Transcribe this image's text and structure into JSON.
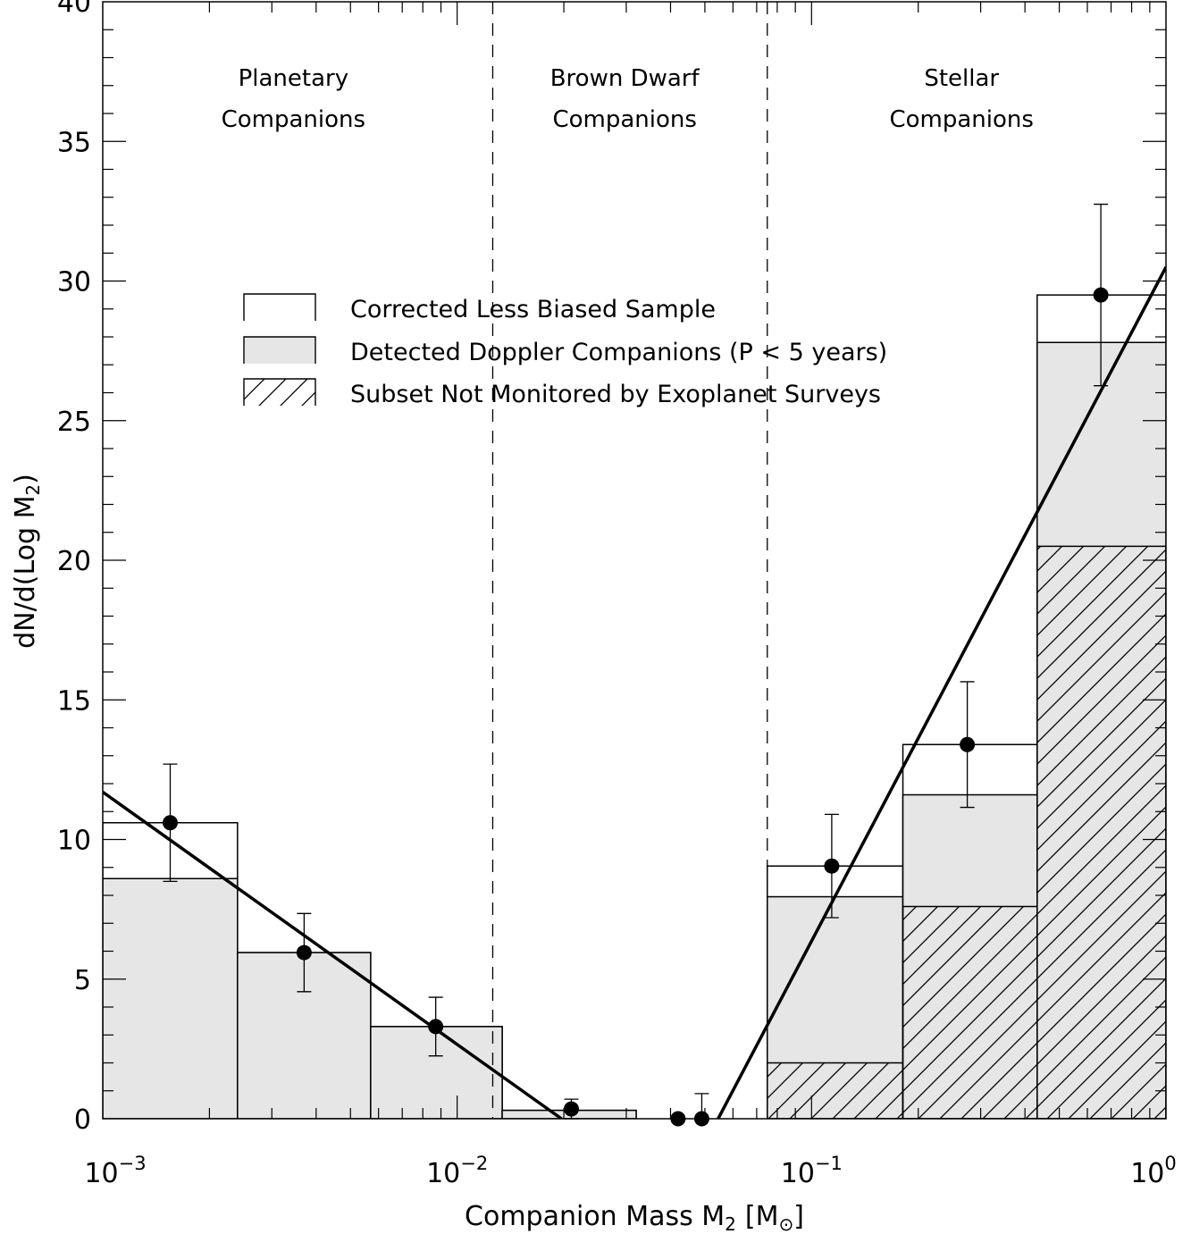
{
  "chart_data": {
    "type": "bar",
    "xscale": "log",
    "xlim": [
      0.001,
      1
    ],
    "ylim": [
      0,
      40
    ],
    "xlabel": {
      "base": "Companion Mass M",
      "sub": "2",
      "unit_open": "[M",
      "unit_sym": "⊙",
      "unit_close": "]"
    },
    "ylabel": {
      "pre": "dN/d(Log M",
      "sub": "2",
      "post": ")"
    },
    "xticks": [
      {
        "value": 0.001,
        "base": "10",
        "exp": "−3"
      },
      {
        "value": 0.01,
        "base": "10",
        "exp": "−2"
      },
      {
        "value": 0.1,
        "base": "10",
        "exp": "−1"
      },
      {
        "value": 1,
        "base": "10",
        "exp": "0"
      }
    ],
    "yticks": [
      "0",
      "5",
      "10",
      "15",
      "20",
      "25",
      "30",
      "35",
      "40"
    ],
    "regions": [
      {
        "line1": "Planetary",
        "line2": "Companions",
        "center": 0.00345
      },
      {
        "line1": "Brown Dwarf",
        "line2": "Companions",
        "center": 0.0297
      },
      {
        "line1": "Stellar",
        "line2": "Companions",
        "center": 0.265
      }
    ],
    "region_boundaries": [
      0.0126,
      0.075
    ],
    "legend": [
      {
        "key": "corrected",
        "label": "Corrected Less Biased Sample"
      },
      {
        "key": "detected",
        "label": "Detected Doppler Companions (P < 5 years)"
      },
      {
        "key": "subset",
        "label": "Subset Not Monitored by Exoplanet Surveys"
      }
    ],
    "bins": [
      {
        "x0": 0.001,
        "x1": 0.0024,
        "corrected": 10.6,
        "detected": 8.6,
        "subset": 0
      },
      {
        "x0": 0.0024,
        "x1": 0.0057,
        "corrected": 5.95,
        "detected": 5.95,
        "subset": 0
      },
      {
        "x0": 0.0057,
        "x1": 0.0134,
        "corrected": 3.3,
        "detected": 3.3,
        "subset": 0
      },
      {
        "x0": 0.0134,
        "x1": 0.032,
        "corrected": 0.3,
        "detected": 0.3,
        "subset": 0
      },
      {
        "x0": 0.075,
        "x1": 0.181,
        "corrected": 9.05,
        "detected": 7.95,
        "subset": 2.0
      },
      {
        "x0": 0.181,
        "x1": 0.433,
        "corrected": 13.4,
        "detected": 11.6,
        "subset": 7.6
      },
      {
        "x0": 0.433,
        "x1": 1.0,
        "corrected": 29.5,
        "detected": 27.8,
        "subset": 20.5
      }
    ],
    "points": [
      {
        "x": 0.00155,
        "y": 10.6,
        "yerr_lo": 2.1,
        "yerr_hi": 2.1
      },
      {
        "x": 0.0037,
        "y": 5.95,
        "yerr_lo": 1.4,
        "yerr_hi": 1.4
      },
      {
        "x": 0.0087,
        "y": 3.3,
        "yerr_lo": 1.05,
        "yerr_hi": 1.05
      },
      {
        "x": 0.021,
        "y": 0.35,
        "yerr_lo": 0.35,
        "yerr_hi": 0.35
      },
      {
        "x": 0.042,
        "y": 0.0,
        "yerr_lo": 0,
        "yerr_hi": 0
      },
      {
        "x": 0.049,
        "y": 0.0,
        "yerr_lo": 0,
        "yerr_hi": 0.9
      },
      {
        "x": 0.114,
        "y": 9.05,
        "yerr_lo": 1.85,
        "yerr_hi": 1.85
      },
      {
        "x": 0.275,
        "y": 13.4,
        "yerr_lo": 2.25,
        "yerr_hi": 2.25
      },
      {
        "x": 0.655,
        "y": 29.5,
        "yerr_lo": 3.25,
        "yerr_hi": 3.25
      }
    ],
    "fits": [
      {
        "name": "planetary-fit",
        "x0": 0.001,
        "y0": 11.7,
        "x1": 0.0197,
        "y1": 0
      },
      {
        "name": "stellar-fit",
        "x0": 0.0545,
        "y0": 0,
        "x1": 1.0,
        "y1": 30.5
      }
    ],
    "colors": {
      "detected_fill": "#e6e6e6",
      "line": "#000000",
      "background": "#ffffff"
    }
  }
}
